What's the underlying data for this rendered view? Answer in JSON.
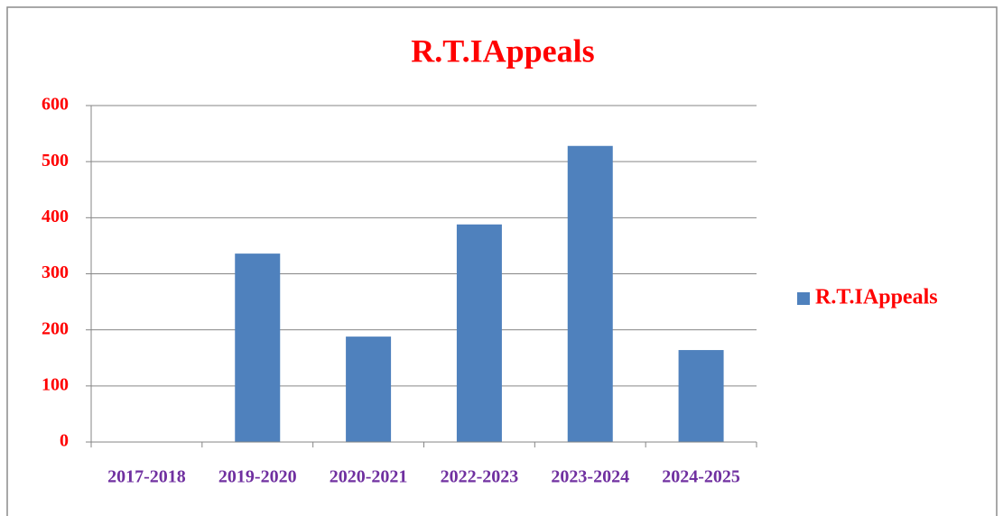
{
  "chart_data": {
    "type": "bar",
    "title": "R.T.IAppeals",
    "categories": [
      "2017-2018",
      "2019-2020",
      "2020-2021",
      "2022-2023",
      "2023-2024",
      "2024-2025"
    ],
    "series": [
      {
        "name": "R.T.IAppeals",
        "color": "#4f81bd",
        "values": [
          0,
          336,
          188,
          388,
          528,
          164
        ]
      }
    ],
    "ylim": [
      0,
      600
    ],
    "yticks": [
      0,
      100,
      200,
      300,
      400,
      500,
      600
    ],
    "grid": true,
    "legend": "right"
  }
}
